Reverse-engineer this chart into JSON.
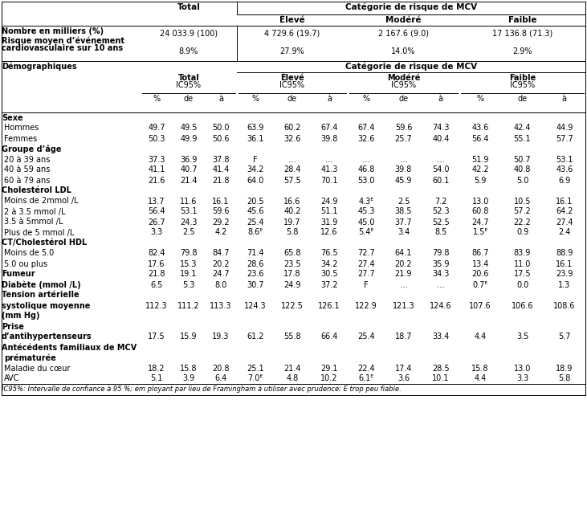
{
  "fig_w": 7.31,
  "fig_h": 6.3,
  "dpi": 100,
  "font_size": 7.0,
  "lc": "#000000",
  "bg": "#ffffff",
  "top_header": {
    "total_label": "Total",
    "mcv_label": "Catégorie de risque de MCV",
    "eleve_label": "Élevé",
    "modere_label": "Modéré",
    "faible_label": "Faible",
    "nombre_label": "Nombre en milliers (%)",
    "nombre_total": "24 033.9 (100)",
    "nombre_eleve": "4 729.6 (19.7)",
    "nombre_modere": "2 167.6 (9.0)",
    "nombre_faible": "17 136.8 (71.3)",
    "risque_label1": "Risque moyen d’événement",
    "risque_label2": "cardiovasculaire sur 10 ans",
    "risque_total": "8.9%",
    "risque_eleve": "27.9%",
    "risque_modere": "14.0%",
    "risque_faible": "2.9%"
  },
  "col_section": "Catégorie de risque de MCV",
  "demo_label": "Démographiques",
  "group_labels": [
    "Total",
    "Élevé",
    "Modéré",
    "Faible"
  ],
  "ic_label": "IC95%",
  "sub_cols": [
    "%",
    "de",
    "à"
  ],
  "sections": [
    {
      "name": "Sexe",
      "rows": [
        [
          "Hommes",
          "49.7",
          "49.5",
          "50.0",
          "63.9",
          "60.2",
          "67.4",
          "67.4",
          "59.6",
          "74.3",
          "43.6",
          "42.4",
          "44.9"
        ],
        [
          "Femmes",
          "50.3",
          "49.9",
          "50.6",
          "36.1",
          "32.6",
          "39.8",
          "32.6",
          "25.7",
          "40.4",
          "56.4",
          "55.1",
          "57.7"
        ]
      ]
    },
    {
      "name": "Groupe d’âge",
      "rows": [
        [
          "20 à 39 ans",
          "37.3",
          "36.9",
          "37.8",
          "F",
          "…",
          "…",
          "…",
          "…",
          "…",
          "51.9",
          "50.7",
          "53.1"
        ],
        [
          "40 à 59 ans",
          "41.1",
          "40.7",
          "41.4",
          "34.2",
          "28.4",
          "41.3",
          "46.8",
          "39.8",
          "54.0",
          "42.2",
          "40.8",
          "43.6"
        ],
        [
          "60 à 79 ans",
          "21.6",
          "21.4",
          "21.8",
          "64.0",
          "57.5",
          "70.1",
          "53.0",
          "45.9",
          "60.1",
          "5.9",
          "5.0",
          "6.9"
        ]
      ]
    },
    {
      "name": "Cholestérol LDL",
      "rows": [
        [
          "Moins de 2mmol /L",
          "13.7",
          "11.6",
          "16.1",
          "20.5",
          "16.6",
          "24.9",
          "4.3ᴱ",
          "2.5",
          "7.2",
          "13.0",
          "10.5",
          "16.1"
        ],
        [
          "2 à 3.5 mmol /L",
          "56.4",
          "53.1",
          "59.6",
          "45.6",
          "40.2",
          "51.1",
          "45.3",
          "38.5",
          "52.3",
          "60.8",
          "57.2",
          "64.2"
        ],
        [
          "3.5 à 5mmol /L",
          "26.7",
          "24.3",
          "29.2",
          "25.4",
          "19.7",
          "31.9",
          "45.0",
          "37.7",
          "52.5",
          "24.7",
          "22.2",
          "27.4"
        ],
        [
          "Plus de 5 mmol /L",
          "3.3",
          "2.5",
          "4.2",
          "8.6ᴱ",
          "5.8",
          "12.6",
          "5.4ᴱ",
          "3.4",
          "8.5",
          "1.5ᴱ",
          "0.9",
          "2.4"
        ]
      ]
    },
    {
      "name": "CT/Cholestérol HDL",
      "rows": [
        [
          "Moins de 5.0",
          "82.4",
          "79.8",
          "84.7",
          "71.4",
          "65.8",
          "76.5",
          "72.7",
          "64.1",
          "79.8",
          "86.7",
          "83.9",
          "88.9"
        ],
        [
          "5.0 ou plus",
          "17.6",
          "15.3",
          "20.2",
          "28.6",
          "23.5",
          "34.2",
          "27.4",
          "20.2",
          "35.9",
          "13.4",
          "11.0",
          "16.1"
        ]
      ]
    },
    {
      "name": "Fumeur",
      "is_inline": true,
      "rows": [
        [
          "Fumeur",
          "21.8",
          "19.1",
          "24.7",
          "23.6",
          "17.8",
          "30.5",
          "27.7",
          "21.9",
          "34.3",
          "20.6",
          "17.5",
          "23.9"
        ]
      ]
    },
    {
      "name": "Diabète (mmol /L)",
      "is_inline": true,
      "rows": [
        [
          "Diabète (mmol /L)",
          "6.5",
          "5.3",
          "8.0",
          "30.7",
          "24.9",
          "37.2",
          "F",
          "…",
          "…",
          "0.7ᴱ",
          "0.0",
          "1.3"
        ]
      ]
    },
    {
      "name": "Tension artérielle",
      "name2": "systolique moyenne",
      "name3": "(mm Hg)",
      "rows": [
        [
          "",
          "112.3",
          "111.2",
          "113.3",
          "124.3",
          "122.5",
          "126.1",
          "122.9",
          "121.3",
          "124.6",
          "107.6",
          "106.6",
          "108.6"
        ]
      ]
    },
    {
      "name": "Prise",
      "name2": "d’antihypertenseurs",
      "rows": [
        [
          "",
          "17.5",
          "15.9",
          "19.3",
          "61.2",
          "55.8",
          "66.4",
          "25.4",
          "18.7",
          "33.4",
          "4.4",
          "3.5",
          "5.7"
        ]
      ]
    },
    {
      "name": "Antécédents familiaux de MCV",
      "name2": "prématurée",
      "rows": [
        [
          "Maladie du cœur",
          "18.2",
          "15.8",
          "20.8",
          "25.1",
          "21.4",
          "29.1",
          "22.4",
          "17.4",
          "28.5",
          "15.8",
          "13.0",
          "18.9"
        ],
        [
          "AVC",
          "5.1",
          "3.9",
          "6.4",
          "7.0ᴱ",
          "4.8",
          "10.2",
          "6.1ᴱ",
          "3.6",
          "10.1",
          "4.4",
          "3.3",
          "5.8"
        ]
      ]
    }
  ],
  "footnote": "IC95%: Intervalle de confiance à 95 %; em ployant par lieu de Framingham à utiliser avec prudence; E trop peu fiable."
}
